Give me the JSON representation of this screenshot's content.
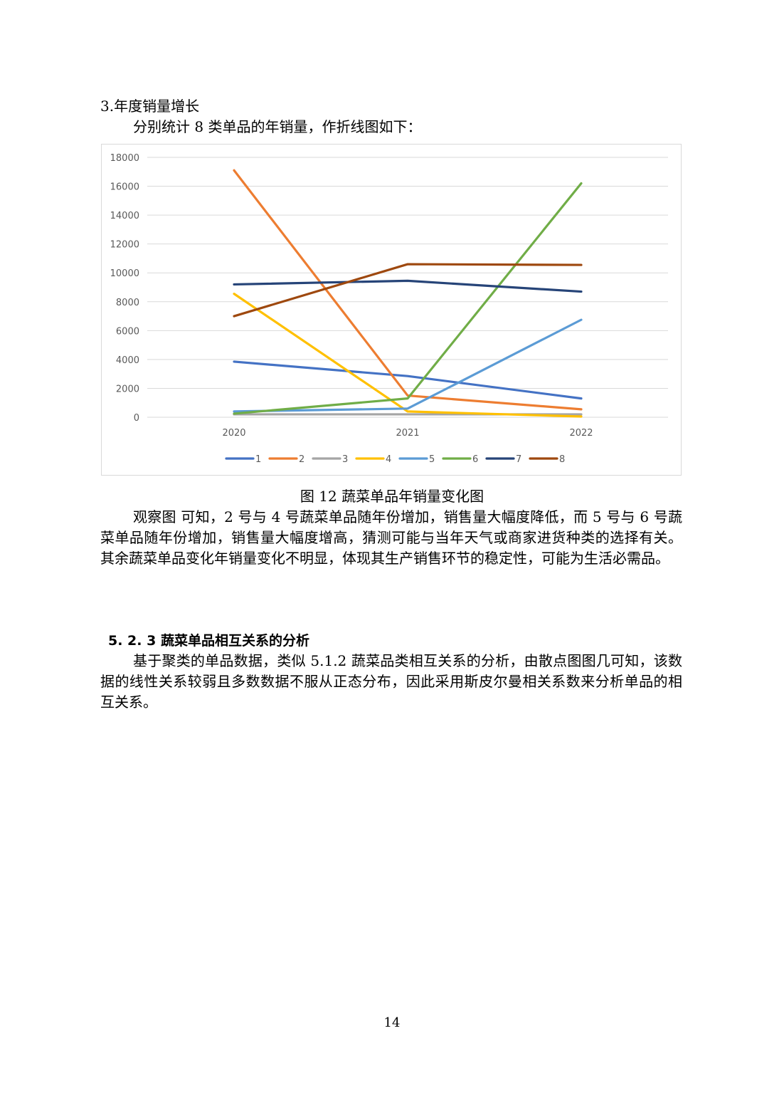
{
  "heading": "3.年度销量增长",
  "intro": "分别统计 8 类单品的年销量，作折线图如下：",
  "figure_caption": "图 12  蔬菜单品年销量变化图",
  "observation": "观察图 可知，2 号与 4 号蔬菜单品随年份增加，销售量大幅度降低，而 5 号与 6 号蔬菜单品随年份增加，销售量大幅度增高，猜测可能与当年天气或商家进货种类的选择有关。其余蔬菜单品变化年销量变化不明显，体现其生产销售环节的稳定性，可能为生活必需品。",
  "section_title": "5. 2. 3 蔬菜单品相互关系的分析",
  "section_body": "基于聚类的单品数据，类似 5.1.2 蔬菜品类相互关系的分析，由散点图图几可知，该数据的线性关系较弱且多数数据不服从正态分布，因此采用斯皮尔曼相关系数来分析单品的相互关系。",
  "page_number": "14",
  "chart_data": {
    "type": "line",
    "title": "",
    "xlabel": "",
    "ylabel": "",
    "categories": [
      "2020",
      "2021",
      "2022"
    ],
    "ylim": [
      0,
      18000
    ],
    "yticks": [
      "0",
      "2000",
      "4000",
      "6000",
      "8000",
      "10000",
      "12000",
      "14000",
      "16000",
      "18000"
    ],
    "grid": true,
    "legend_position": "bottom",
    "series": [
      {
        "name": "1",
        "color": "#4472C4",
        "values": [
          3850,
          2850,
          1300
        ]
      },
      {
        "name": "2",
        "color": "#ED7D31",
        "values": [
          17100,
          1500,
          550
        ]
      },
      {
        "name": "3",
        "color": "#A5A5A5",
        "values": [
          200,
          200,
          200
        ]
      },
      {
        "name": "4",
        "color": "#FFC000",
        "values": [
          8550,
          400,
          50
        ]
      },
      {
        "name": "5",
        "color": "#5B9BD5",
        "values": [
          400,
          600,
          6750
        ]
      },
      {
        "name": "6",
        "color": "#70AD47",
        "values": [
          250,
          1300,
          16200
        ]
      },
      {
        "name": "7",
        "color": "#264478",
        "values": [
          9200,
          9450,
          8700
        ]
      },
      {
        "name": "8",
        "color": "#9E480E",
        "values": [
          7000,
          10600,
          10550
        ]
      }
    ]
  }
}
